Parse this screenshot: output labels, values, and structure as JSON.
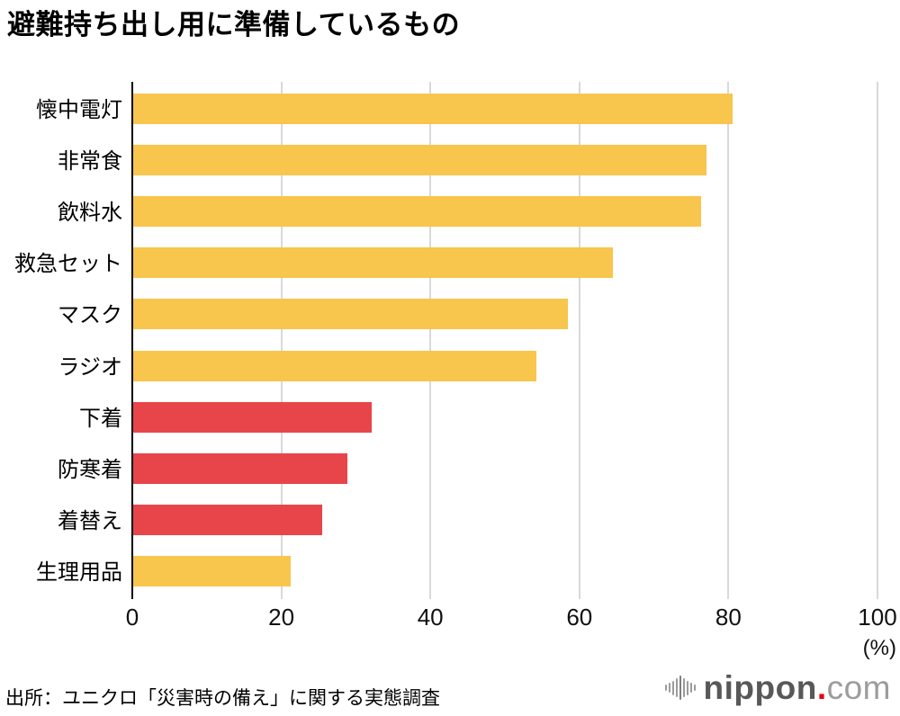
{
  "title": "避難持ち出し用に準備しているもの",
  "source": "出所：ユニクロ「災害時の備え」に関する実態調査",
  "axis_unit": "(%)",
  "colors": {
    "bar_yellow": "#F8C54D",
    "bar_red": "#E8454B",
    "gridline": "#d9d9d9",
    "axis": "#000000",
    "logo_main": "#595757",
    "logo_dot": "#e60012",
    "logo_suffix": "#9b9c9c",
    "logo_icon": "#9b9b9b"
  },
  "logo": {
    "name": "nippon.com",
    "text_main": "nippon",
    "text_dot": ".",
    "text_suffix": "com"
  },
  "chart_data": {
    "type": "bar",
    "orientation": "horizontal",
    "title": "避難持ち出し用に準備しているもの",
    "categories": [
      "懐中電灯",
      "非常食",
      "飲料水",
      "救急セット",
      "マスク",
      "ラジオ",
      "下着",
      "防寒着",
      "着替え",
      "生理用品"
    ],
    "values": [
      80.4,
      76.9,
      76.2,
      64.4,
      58.3,
      54.1,
      32.0,
      28.8,
      25.4,
      21.1
    ],
    "bar_colors": [
      "#F8C54D",
      "#F8C54D",
      "#F8C54D",
      "#F8C54D",
      "#F8C54D",
      "#F8C54D",
      "#E8454B",
      "#E8454B",
      "#E8454B",
      "#F8C54D"
    ],
    "xlabel": "(%)",
    "xlim": [
      0,
      100
    ],
    "xticks": [
      0,
      20,
      40,
      60,
      80,
      100
    ],
    "grid": true,
    "legend": false
  }
}
